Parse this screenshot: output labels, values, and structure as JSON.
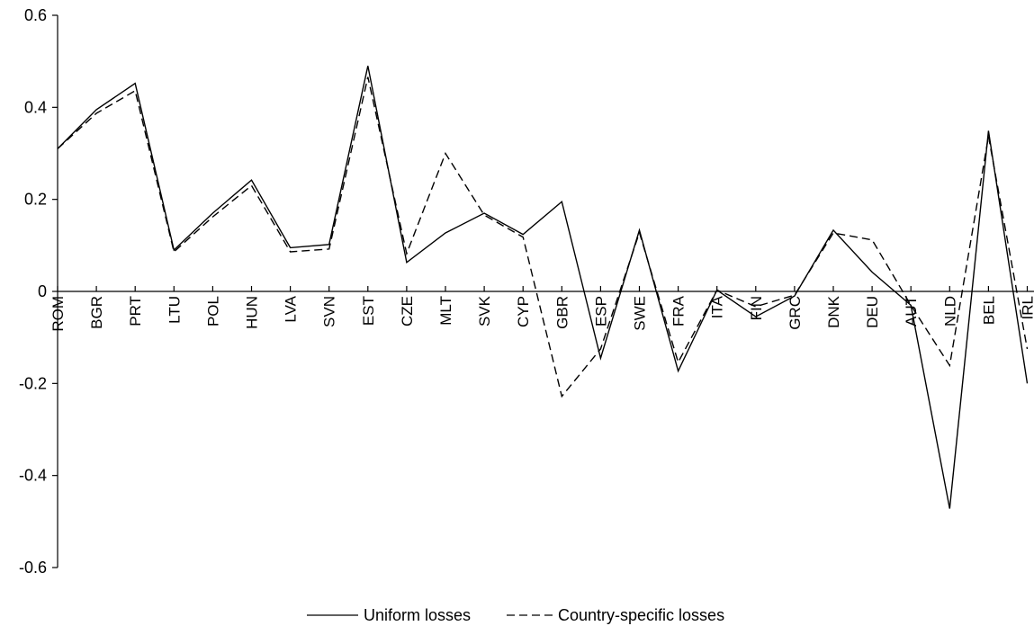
{
  "chart_data": {
    "type": "line",
    "categories": [
      "ROM",
      "BGR",
      "PRT",
      "LTU",
      "POL",
      "HUN",
      "LVA",
      "SVN",
      "EST",
      "CZE",
      "MLT",
      "SVK",
      "CYP",
      "GBR",
      "ESP",
      "SWE",
      "FRA",
      "ITA",
      "FIN",
      "GRC",
      "DNK",
      "DEU",
      "AUT",
      "NLD",
      "BEL",
      "IRL"
    ],
    "series": [
      {
        "name": "Uniform losses",
        "line_style": "solid",
        "values": [
          0.31,
          0.395,
          0.452,
          0.09,
          0.17,
          0.242,
          0.095,
          0.102,
          0.49,
          0.063,
          0.127,
          0.17,
          0.124,
          0.195,
          -0.145,
          0.133,
          -0.173,
          0.003,
          -0.055,
          -0.01,
          0.133,
          0.042,
          -0.03,
          -0.472,
          0.349,
          -0.2
        ]
      },
      {
        "name": "Country-specific losses",
        "line_style": "dashed",
        "values": [
          0.31,
          0.387,
          0.436,
          0.086,
          0.162,
          0.23,
          0.086,
          0.092,
          0.466,
          0.082,
          0.3,
          0.166,
          0.118,
          -0.228,
          -0.125,
          0.128,
          -0.154,
          0.003,
          -0.033,
          -0.008,
          0.127,
          0.112,
          -0.03,
          -0.161,
          0.337,
          -0.125
        ]
      }
    ],
    "y_ticks": [
      "0.6",
      "0.4",
      "0.2",
      "0",
      "-0.2",
      "-0.4",
      "-0.6"
    ],
    "ylim": [
      -0.6,
      0.6
    ],
    "grid": false,
    "legend_position": "bottom-center",
    "title": "",
    "xlabel": "",
    "ylabel": ""
  }
}
